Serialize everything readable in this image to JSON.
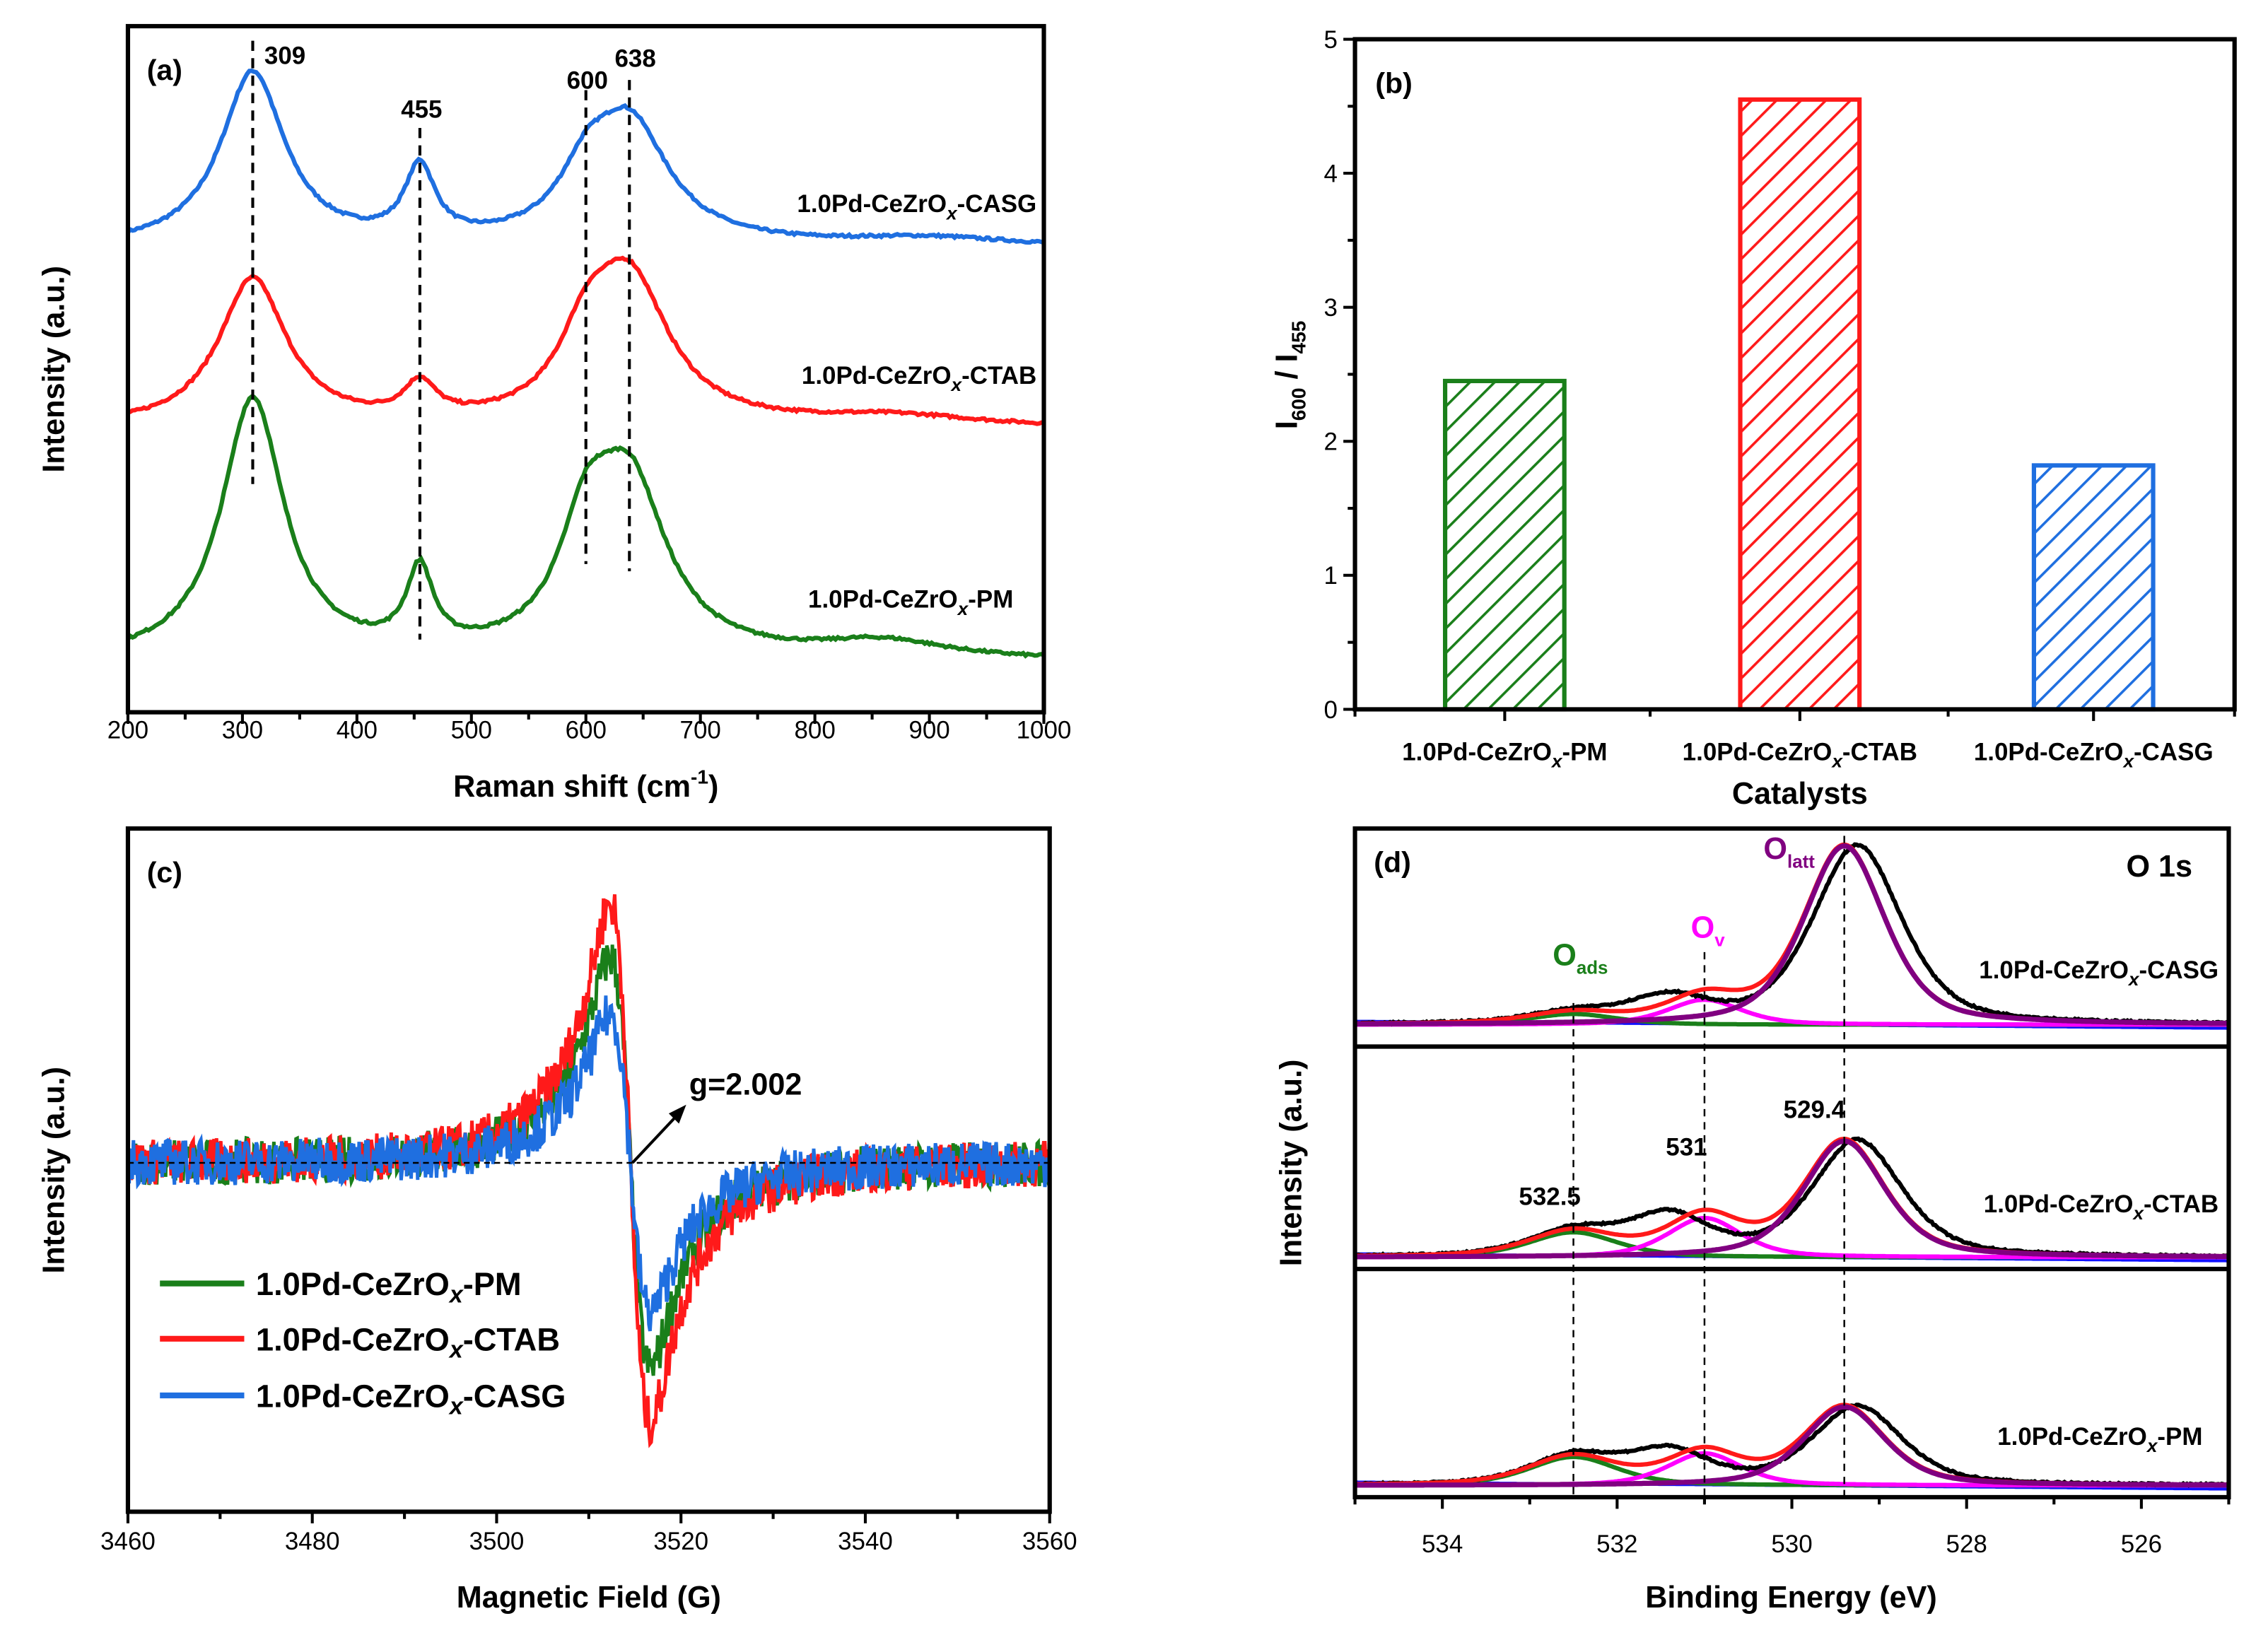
{
  "chart_data": [
    {
      "id": "a",
      "type": "line",
      "panel_label": "(a)",
      "xlabel": {
        "main": "Raman shift (cm",
        "sup": "-1",
        "end": ")"
      },
      "ylabel": "Intensity (a.u.)",
      "xlim": [
        200,
        1000
      ],
      "xticks": [
        200,
        300,
        400,
        500,
        600,
        700,
        800,
        900,
        1000
      ],
      "ylim": [
        0,
        3.15
      ],
      "peak_markers": [
        {
          "value": 309,
          "label": "309"
        },
        {
          "value": 455,
          "label": "455"
        },
        {
          "value": 600,
          "label": "600"
        },
        {
          "value": 638,
          "label": "638"
        }
      ],
      "series": [
        {
          "prefix": "1.0Pd-CeZrO",
          "sub": "x",
          "suffix": "-CASG",
          "color": "#1f6fe0",
          "baseline": 2.13,
          "peaks": [
            {
              "center": 309,
              "height": 0.8,
              "hwhm": 34
            },
            {
              "center": 455,
              "height": 0.33,
              "hwhm": 16
            },
            {
              "center": 600,
              "height": 0.22,
              "hwhm": 28
            },
            {
              "center": 638,
              "height": 0.55,
              "hwhm": 42
            },
            {
              "center": 900,
              "height": 0.04,
              "hwhm": 90
            }
          ]
        },
        {
          "prefix": "1.0Pd-CeZrO",
          "sub": "x",
          "suffix": "-CTAB",
          "color": "#ff1a1a",
          "baseline": 1.3,
          "peaks": [
            {
              "center": 309,
              "height": 0.68,
              "hwhm": 36
            },
            {
              "center": 455,
              "height": 0.16,
              "hwhm": 17
            },
            {
              "center": 600,
              "height": 0.28,
              "hwhm": 28
            },
            {
              "center": 638,
              "height": 0.66,
              "hwhm": 42
            },
            {
              "center": 870,
              "height": 0.05,
              "hwhm": 90
            }
          ]
        },
        {
          "prefix": "1.0Pd-CeZrO",
          "sub": "x",
          "suffix": "-PM",
          "color": "#1a7f1a",
          "baseline": 0.23,
          "peaks": [
            {
              "center": 309,
              "height": 1.2,
              "hwhm": 33
            },
            {
              "center": 455,
              "height": 0.36,
              "hwhm": 14
            },
            {
              "center": 600,
              "height": 0.45,
              "hwhm": 28
            },
            {
              "center": 638,
              "height": 0.78,
              "hwhm": 40
            },
            {
              "center": 860,
              "height": 0.08,
              "hwhm": 70
            }
          ]
        }
      ]
    },
    {
      "id": "b",
      "type": "bar",
      "panel_label": "(b)",
      "categories": [
        {
          "prefix": "1.0Pd-CeZrO",
          "sub": "x",
          "suffix": "-PM"
        },
        {
          "prefix": "1.0Pd-CeZrO",
          "sub": "x",
          "suffix": "-CTAB"
        },
        {
          "prefix": "1.0Pd-CeZrO",
          "sub": "x",
          "suffix": "-CASG"
        }
      ],
      "values": [
        2.45,
        4.55,
        1.82
      ],
      "colors": [
        "#1a7f1a",
        "#ff1a1a",
        "#1f6fe0"
      ],
      "ylim": [
        0,
        5
      ],
      "yticks": [
        0,
        1,
        2,
        3,
        4,
        5
      ],
      "ylabel": {
        "a": "I",
        "a_sub": "600",
        "sep": " / I",
        "b_sub": "455"
      },
      "xlabel": "Catalysts"
    },
    {
      "id": "c",
      "type": "line",
      "panel_label": "(c)",
      "xlabel": "Magnetic Field (G)",
      "ylabel": "Intensity (a.u.)",
      "xlim": [
        3460,
        3560
      ],
      "xticks": [
        3460,
        3480,
        3500,
        3520,
        3540,
        3560
      ],
      "ylim": [
        -1.2,
        1.15
      ],
      "center_field": 3514.5,
      "annotation": "g=2.002",
      "series": [
        {
          "prefix": "1.0Pd-CeZrO",
          "sub": "x",
          "suffix": "-PM",
          "color": "#1a7f1a",
          "amplitude": 0.76
        },
        {
          "prefix": "1.0Pd-CeZrO",
          "sub": "x",
          "suffix": "-CTAB",
          "color": "#ff1a1a",
          "amplitude": 0.96
        },
        {
          "prefix": "1.0Pd-CeZrO",
          "sub": "x",
          "suffix": "-CASG",
          "color": "#1f6fe0",
          "amplitude": 0.55
        }
      ]
    },
    {
      "id": "d",
      "type": "line",
      "panel_label": "(d)",
      "title": "O 1s",
      "xlabel": "Binding Energy (eV)",
      "ylabel": "Intensity (a.u.)",
      "xlim": [
        535,
        525
      ],
      "xticks": [
        534,
        532,
        530,
        528,
        526
      ],
      "components": [
        {
          "main": "O",
          "sub": "ads",
          "value": "532.5",
          "center": 532.5,
          "hwhm": 0.6,
          "color": "#1a7f1a"
        },
        {
          "main": "O",
          "sub": "v",
          "value": "531",
          "center": 531.0,
          "hwhm": 0.5,
          "color": "#ff00ff"
        },
        {
          "main": "O",
          "sub": "latt",
          "value": "529.4",
          "center": 529.4,
          "hwhm": 0.55,
          "color": "#800080"
        }
      ],
      "envelope_color": "#ff1a1a",
      "raw_color": "#000000",
      "baseline_color": "#1010ff",
      "series": [
        {
          "prefix": "1.0Pd-CeZrO",
          "sub": "x",
          "suffix": "-CASG",
          "amplitudes": [
            0.06,
            0.14,
            1.0
          ]
        },
        {
          "prefix": "1.0Pd-CeZrO",
          "sub": "x",
          "suffix": "-CTAB",
          "amplitudes": [
            0.14,
            0.22,
            0.65
          ]
        },
        {
          "prefix": "1.0Pd-CeZrO",
          "sub": "x",
          "suffix": "-PM",
          "amplitudes": [
            0.16,
            0.18,
            0.44
          ]
        }
      ]
    }
  ]
}
